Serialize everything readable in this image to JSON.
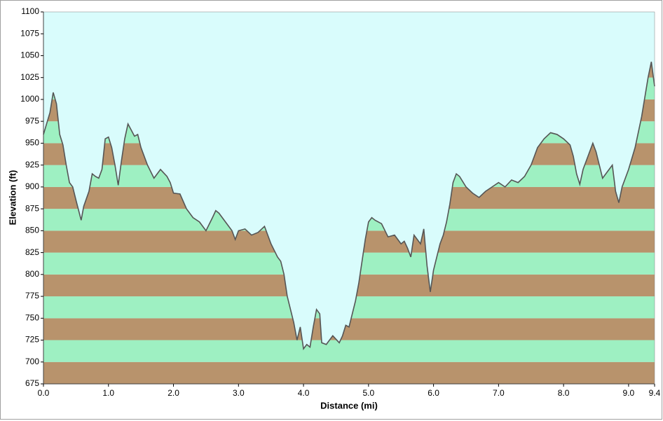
{
  "chart_data": {
    "type": "area",
    "xlabel": "Distance  (mi)",
    "ylabel": "Elevation  (ft)",
    "x": [
      0.0,
      0.1,
      0.15,
      0.2,
      0.25,
      0.3,
      0.35,
      0.4,
      0.45,
      0.5,
      0.58,
      0.62,
      0.7,
      0.75,
      0.8,
      0.85,
      0.9,
      0.95,
      1.0,
      1.05,
      1.1,
      1.15,
      1.2,
      1.25,
      1.3,
      1.35,
      1.4,
      1.45,
      1.5,
      1.6,
      1.7,
      1.8,
      1.9,
      1.95,
      2.0,
      2.1,
      2.2,
      2.3,
      2.4,
      2.45,
      2.5,
      2.6,
      2.65,
      2.7,
      2.8,
      2.9,
      2.95,
      3.0,
      3.1,
      3.2,
      3.3,
      3.4,
      3.5,
      3.6,
      3.65,
      3.7,
      3.75,
      3.8,
      3.85,
      3.9,
      3.95,
      4.0,
      4.05,
      4.1,
      4.15,
      4.2,
      4.25,
      4.28,
      4.35,
      4.45,
      4.55,
      4.6,
      4.65,
      4.7,
      4.8,
      4.85,
      4.9,
      4.95,
      5.0,
      5.05,
      5.1,
      5.2,
      5.3,
      5.4,
      5.5,
      5.55,
      5.6,
      5.65,
      5.7,
      5.75,
      5.8,
      5.85,
      5.9,
      5.95,
      6.0,
      6.05,
      6.1,
      6.15,
      6.2,
      6.25,
      6.3,
      6.35,
      6.4,
      6.5,
      6.6,
      6.7,
      6.8,
      6.9,
      7.0,
      7.1,
      7.2,
      7.3,
      7.4,
      7.5,
      7.6,
      7.7,
      7.8,
      7.9,
      8.0,
      8.1,
      8.15,
      8.2,
      8.25,
      8.3,
      8.4,
      8.45,
      8.5,
      8.55,
      8.6,
      8.7,
      8.75,
      8.8,
      8.85,
      8.9,
      9.0,
      9.1,
      9.2,
      9.3,
      9.35,
      9.4
    ],
    "values": [
      960,
      985,
      1008,
      995,
      960,
      948,
      925,
      905,
      900,
      885,
      862,
      878,
      895,
      915,
      912,
      910,
      920,
      955,
      957,
      945,
      925,
      902,
      930,
      955,
      972,
      965,
      958,
      960,
      945,
      925,
      910,
      920,
      912,
      905,
      893,
      892,
      875,
      865,
      860,
      855,
      850,
      865,
      873,
      870,
      860,
      850,
      840,
      850,
      852,
      845,
      848,
      855,
      835,
      820,
      815,
      800,
      775,
      760,
      745,
      725,
      740,
      715,
      720,
      717,
      740,
      760,
      755,
      722,
      720,
      730,
      722,
      730,
      742,
      740,
      770,
      790,
      815,
      840,
      860,
      865,
      862,
      858,
      843,
      845,
      835,
      838,
      830,
      820,
      845,
      840,
      835,
      852,
      810,
      780,
      805,
      820,
      835,
      845,
      860,
      880,
      905,
      915,
      912,
      900,
      893,
      888,
      895,
      900,
      905,
      900,
      908,
      905,
      912,
      925,
      945,
      955,
      962,
      960,
      955,
      948,
      935,
      915,
      903,
      920,
      940,
      950,
      940,
      925,
      910,
      920,
      925,
      895,
      882,
      900,
      920,
      945,
      980,
      1025,
      1043,
      1015
    ],
    "xlim": [
      0,
      9.4
    ],
    "xticks": [
      {
        "value": 0,
        "label": "0.0"
      },
      {
        "value": 1,
        "label": "1.0"
      },
      {
        "value": 2,
        "label": "2.0"
      },
      {
        "value": 3,
        "label": "3.0"
      },
      {
        "value": 4,
        "label": "4.0"
      },
      {
        "value": 5,
        "label": "5.0"
      },
      {
        "value": 6,
        "label": "6.0"
      },
      {
        "value": 7,
        "label": "7.0"
      },
      {
        "value": 8,
        "label": "8.0"
      },
      {
        "value": 9,
        "label": "9.0"
      },
      9.4
    ],
    "ylim": [
      675,
      1100
    ],
    "yticks": [
      675,
      700,
      725,
      750,
      775,
      800,
      825,
      850,
      875,
      900,
      925,
      950,
      975,
      1000,
      1025,
      1050,
      1075,
      1100
    ],
    "band_colors": [
      "#b8936c",
      "#9ef0c2"
    ],
    "sky_color": "#d9fcfc",
    "line_color": "#555555"
  }
}
